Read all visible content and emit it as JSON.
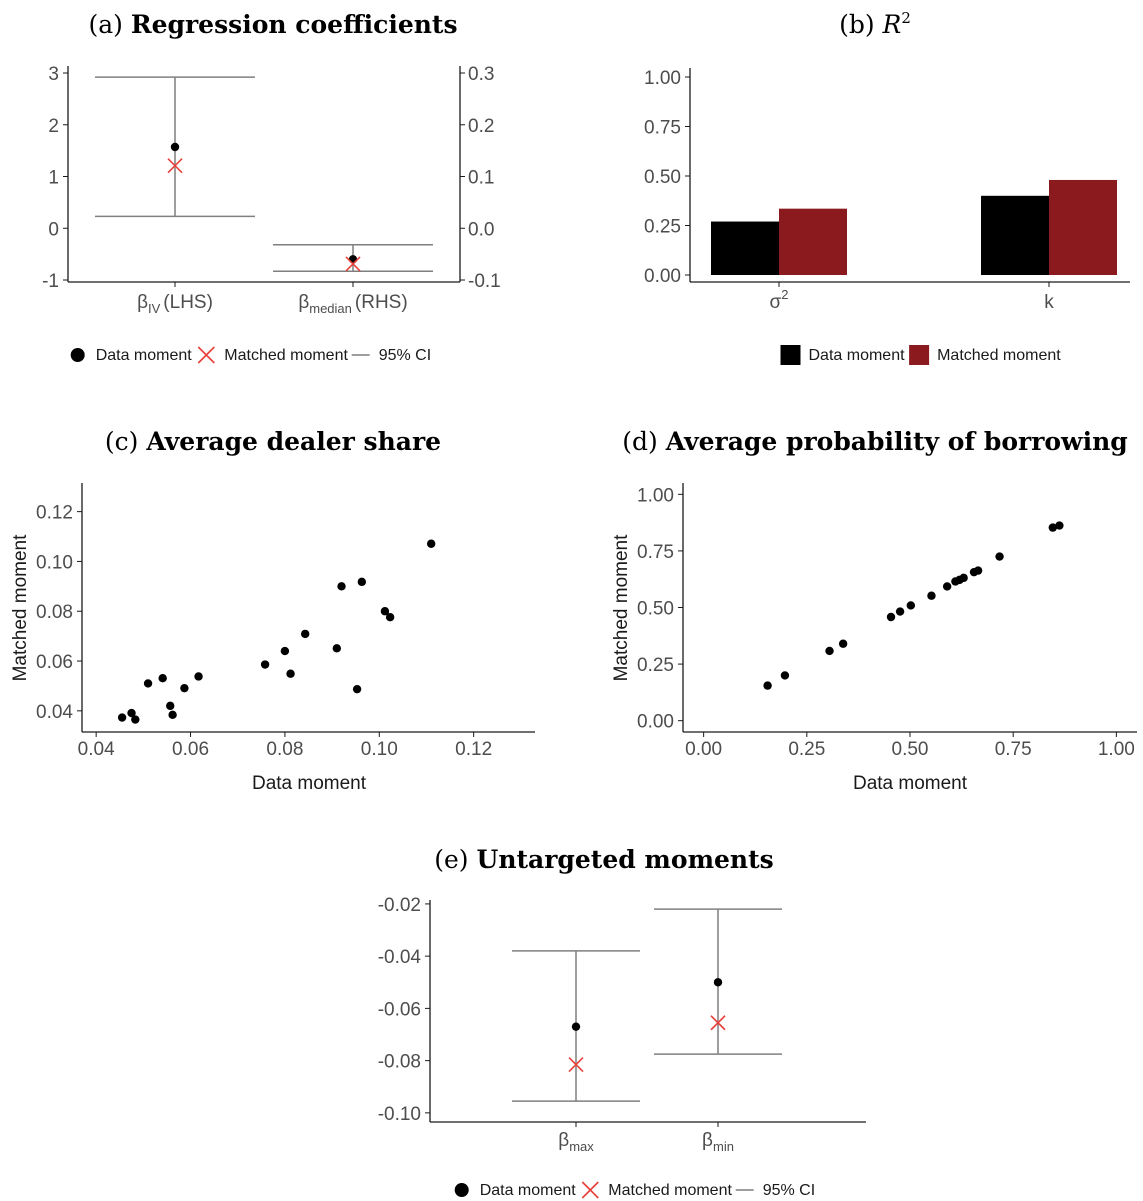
{
  "chart_data": [
    {
      "id": "a",
      "type": "scatter",
      "title_prefix": "(a)",
      "title": "Regression coefficients",
      "categories": [
        {
          "sym": "β",
          "sub": "IV",
          "suffix": "(LHS)",
          "axis": "left"
        },
        {
          "sym": "β",
          "sub": "median",
          "suffix": "(RHS)",
          "axis": "right"
        }
      ],
      "left_axis": {
        "ylim": [
          -1,
          3
        ],
        "ticks": [
          "3",
          "2",
          "1",
          "0",
          "-1"
        ],
        "tick_values": [
          3,
          2,
          1,
          0,
          -1
        ]
      },
      "right_axis": {
        "ylim": [
          -0.1,
          0.3
        ],
        "ticks": [
          "0.3",
          "0.2",
          "0.1",
          "0.0",
          "-0.1"
        ],
        "tick_values": [
          0.3,
          0.2,
          0.1,
          0.0,
          -0.1
        ]
      },
      "series": [
        {
          "name": "Data moment",
          "values": [
            1.57,
            -0.06
          ]
        },
        {
          "name": "Matched moment",
          "values": [
            1.21,
            -0.069
          ]
        },
        {
          "name": "95% CI",
          "lower": [
            0.23,
            -0.083
          ],
          "upper": [
            2.92,
            -0.032
          ]
        }
      ],
      "legend": {
        "position": "bottom",
        "items": [
          "Data moment",
          "Matched moment",
          "95% CI"
        ]
      }
    },
    {
      "id": "b",
      "type": "bar",
      "title_prefix": "(b)",
      "title": "R",
      "title_sup": "2",
      "categories": [
        {
          "label": "σ",
          "sup": "2"
        },
        {
          "label": "k",
          "sup": ""
        }
      ],
      "ylim": [
        0,
        1
      ],
      "ticks": [
        "1.00",
        "0.75",
        "0.50",
        "0.25",
        "0.00"
      ],
      "tick_values": [
        1.0,
        0.75,
        0.5,
        0.25,
        0.0
      ],
      "series": [
        {
          "name": "Data moment",
          "values": [
            0.27,
            0.4
          ],
          "color": "#000000"
        },
        {
          "name": "Matched moment",
          "values": [
            0.335,
            0.48
          ],
          "color": "#8b1a1f"
        }
      ],
      "legend": {
        "position": "bottom",
        "items": [
          "Data moment",
          "Matched moment"
        ]
      }
    },
    {
      "id": "c",
      "type": "scatter",
      "title_prefix": "(c)",
      "title": "Average dealer share",
      "xlabel": "Data moment",
      "ylabel": "Matched moment",
      "xlim": [
        0.037,
        0.133
      ],
      "ylim": [
        0.0315,
        0.1315
      ],
      "xticks": [
        "0.04",
        "0.06",
        "0.08",
        "0.10",
        "0.12"
      ],
      "xtick_values": [
        0.04,
        0.06,
        0.08,
        0.1,
        0.12
      ],
      "yticks": [
        "0.12",
        "0.10",
        "0.08",
        "0.06",
        "0.04"
      ],
      "ytick_values": [
        0.12,
        0.1,
        0.08,
        0.06,
        0.04
      ],
      "points": [
        {
          "x": 0.0455,
          "y": 0.0373
        },
        {
          "x": 0.0475,
          "y": 0.0391
        },
        {
          "x": 0.0483,
          "y": 0.0365
        },
        {
          "x": 0.051,
          "y": 0.051
        },
        {
          "x": 0.0541,
          "y": 0.0531
        },
        {
          "x": 0.0557,
          "y": 0.042
        },
        {
          "x": 0.0562,
          "y": 0.0384
        },
        {
          "x": 0.0587,
          "y": 0.0491
        },
        {
          "x": 0.0617,
          "y": 0.0538
        },
        {
          "x": 0.0758,
          "y": 0.0586
        },
        {
          "x": 0.08,
          "y": 0.064
        },
        {
          "x": 0.0812,
          "y": 0.0549
        },
        {
          "x": 0.0843,
          "y": 0.0709
        },
        {
          "x": 0.091,
          "y": 0.0651
        },
        {
          "x": 0.092,
          "y": 0.09
        },
        {
          "x": 0.0953,
          "y": 0.0487
        },
        {
          "x": 0.0963,
          "y": 0.0918
        },
        {
          "x": 0.1012,
          "y": 0.08
        },
        {
          "x": 0.1023,
          "y": 0.0776
        },
        {
          "x": 0.111,
          "y": 0.1071
        }
      ]
    },
    {
      "id": "d",
      "type": "scatter",
      "title_prefix": "(d)",
      "title": "Average probability of borrowing",
      "xlabel": "Data moment",
      "ylabel": "Matched moment",
      "xlim": [
        -0.05,
        1.05
      ],
      "ylim": [
        -0.05,
        1.05
      ],
      "xticks": [
        "0.00",
        "0.25",
        "0.50",
        "0.75",
        "1.00"
      ],
      "xtick_values": [
        0.0,
        0.25,
        0.5,
        0.75,
        1.0
      ],
      "yticks": [
        "1.00",
        "0.75",
        "0.50",
        "0.25",
        "0.00"
      ],
      "ytick_values": [
        1.0,
        0.75,
        0.5,
        0.25,
        0.0
      ],
      "points": [
        {
          "x": 0.155,
          "y": 0.155
        },
        {
          "x": 0.197,
          "y": 0.2
        },
        {
          "x": 0.305,
          "y": 0.308
        },
        {
          "x": 0.338,
          "y": 0.34
        },
        {
          "x": 0.454,
          "y": 0.458
        },
        {
          "x": 0.476,
          "y": 0.482
        },
        {
          "x": 0.502,
          "y": 0.509
        },
        {
          "x": 0.552,
          "y": 0.552
        },
        {
          "x": 0.59,
          "y": 0.593
        },
        {
          "x": 0.61,
          "y": 0.615
        },
        {
          "x": 0.62,
          "y": 0.622
        },
        {
          "x": 0.63,
          "y": 0.631
        },
        {
          "x": 0.655,
          "y": 0.656
        },
        {
          "x": 0.665,
          "y": 0.663
        },
        {
          "x": 0.717,
          "y": 0.725
        },
        {
          "x": 0.846,
          "y": 0.853
        },
        {
          "x": 0.862,
          "y": 0.862
        }
      ]
    },
    {
      "id": "e",
      "type": "scatter",
      "title_prefix": "(e)",
      "title": "Untargeted moments",
      "categories": [
        {
          "sym": "β",
          "sub": "max"
        },
        {
          "sym": "β",
          "sub": "min"
        }
      ],
      "ylim": [
        -0.1035,
        -0.0185
      ],
      "ticks": [
        "-0.02",
        "-0.04",
        "-0.06",
        "-0.08",
        "-0.10"
      ],
      "tick_values": [
        -0.02,
        -0.04,
        -0.06,
        -0.08,
        -0.1
      ],
      "series": [
        {
          "name": "Data moment",
          "values": [
            -0.067,
            -0.05
          ]
        },
        {
          "name": "Matched moment",
          "values": [
            -0.0815,
            -0.0655
          ]
        },
        {
          "name": "95% CI",
          "lower": [
            -0.0955,
            -0.0775
          ],
          "upper": [
            -0.038,
            -0.022
          ]
        }
      ],
      "legend": {
        "position": "bottom",
        "items": [
          "Data moment",
          "Matched moment",
          "95% CI"
        ]
      }
    }
  ],
  "colors": {
    "data": "#000000",
    "matched_x": "#e8403a",
    "matched_bar": "#8b1a1f",
    "ci": "#7f7f7f",
    "axis": "#1a1a1a"
  }
}
